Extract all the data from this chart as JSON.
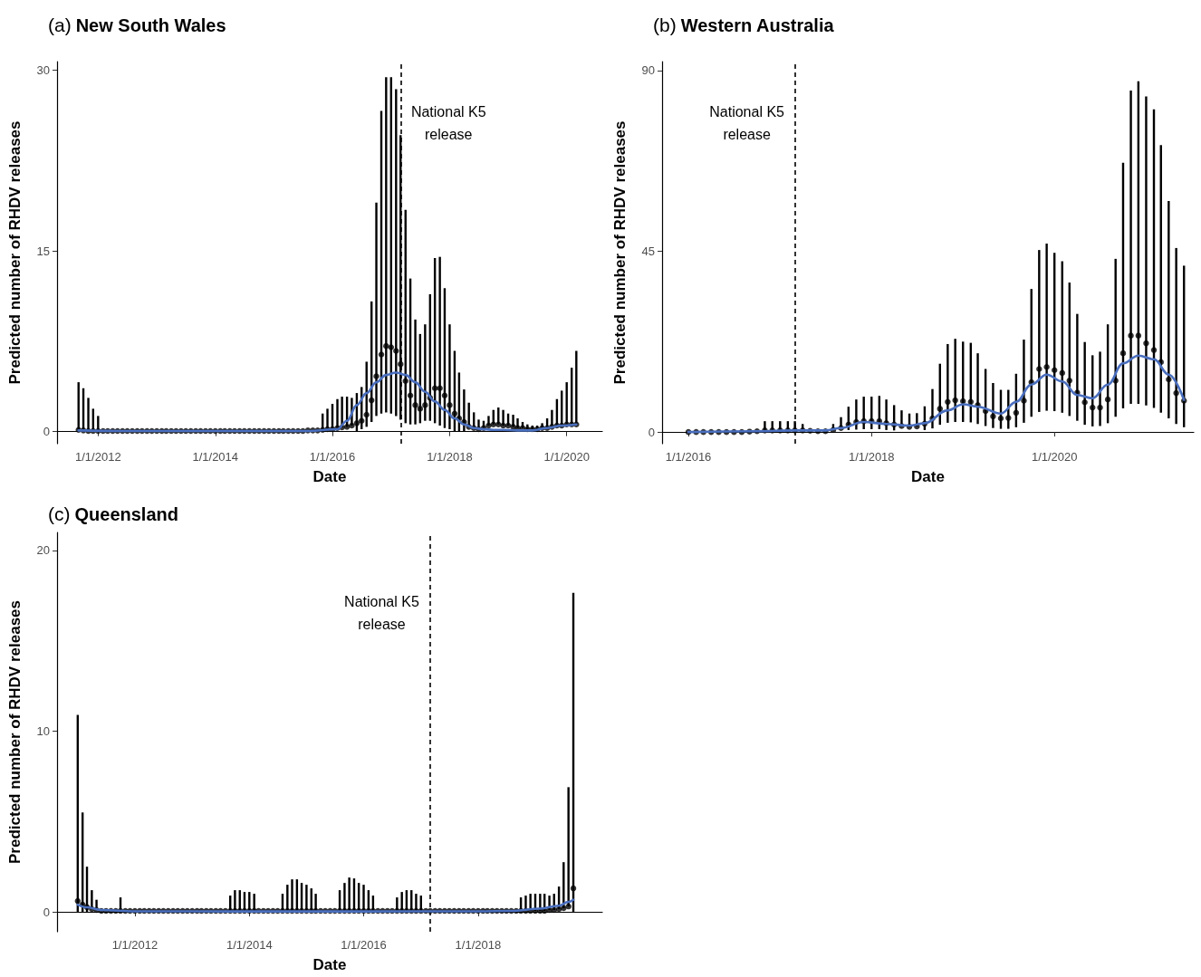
{
  "chart_data": [
    {
      "type": "scatter",
      "title": "(a) New South Wales",
      "xlabel": "Date",
      "ylabel": "Predicted number of RHDV releases",
      "xlim": [
        "2011-04-20",
        "2020-08-10"
      ],
      "ylim": [
        -1,
        30.7
      ],
      "yticks": [
        0,
        15,
        30
      ],
      "xticks": [
        {
          "value": "2012-01-01",
          "label": "1/1/2012"
        },
        {
          "value": "2014-01-01",
          "label": "1/1/2014"
        },
        {
          "value": "2016-01-01",
          "label": "1/1/2016"
        },
        {
          "value": "2018-01-01",
          "label": "1/1/2018"
        },
        {
          "value": "2020-01-01",
          "label": "1/1/2020"
        }
      ],
      "ref_lines": [
        {
          "axis": "x",
          "value": "2017-03-01",
          "color": "#000000",
          "line_style": "dashed"
        }
      ],
      "annotations": [
        "National K5\nrelease"
      ],
      "series": [
        {
          "type": "scatter",
          "color": "#000000",
          "marker": "circle",
          "x": [
            "2011-09",
            "2011-10",
            "2011-11",
            "2011-12",
            "2012-01",
            "2012-02",
            "2012-03",
            "2012-04",
            "2012-05",
            "2012-06",
            "2012-07",
            "2012-08",
            "2012-09",
            "2012-10",
            "2012-11",
            "2012-12",
            "2013-01",
            "2013-02",
            "2013-03",
            "2013-04",
            "2013-05",
            "2013-06",
            "2013-07",
            "2013-08",
            "2013-09",
            "2013-10",
            "2013-11",
            "2013-12",
            "2014-01",
            "2014-02",
            "2014-03",
            "2014-04",
            "2014-05",
            "2014-06",
            "2014-07",
            "2014-08",
            "2014-09",
            "2014-10",
            "2014-11",
            "2014-12",
            "2015-01",
            "2015-02",
            "2015-03",
            "2015-04",
            "2015-05",
            "2015-06",
            "2015-07",
            "2015-08",
            "2015-09",
            "2015-10",
            "2015-11",
            "2015-12",
            "2016-01",
            "2016-02",
            "2016-03",
            "2016-04",
            "2016-05",
            "2016-06",
            "2016-07",
            "2016-08",
            "2016-09",
            "2016-10",
            "2016-11",
            "2016-12",
            "2017-01",
            "2017-02",
            "2017-03",
            "2017-04",
            "2017-05",
            "2017-06",
            "2017-07",
            "2017-08",
            "2017-09",
            "2017-10",
            "2017-11",
            "2017-12",
            "2018-01",
            "2018-02",
            "2018-03",
            "2018-04",
            "2018-05",
            "2018-06",
            "2018-07",
            "2018-08",
            "2018-09",
            "2018-10",
            "2018-11",
            "2018-12",
            "2019-01",
            "2019-02",
            "2019-03",
            "2019-04",
            "2019-05",
            "2019-06",
            "2019-07",
            "2019-08",
            "2019-09",
            "2019-10",
            "2019-11",
            "2019-12",
            "2020-01",
            "2020-02",
            "2020-03"
          ],
          "values": [
            0.15,
            0.1,
            0.05,
            0.05,
            0.05,
            0.05,
            0.05,
            0.05,
            0.05,
            0.05,
            0.05,
            0.05,
            0.05,
            0.05,
            0.05,
            0.05,
            0.05,
            0.05,
            0.05,
            0.05,
            0.05,
            0.05,
            0.05,
            0.05,
            0.05,
            0.05,
            0.05,
            0.05,
            0.05,
            0.05,
            0.05,
            0.05,
            0.05,
            0.05,
            0.05,
            0.05,
            0.05,
            0.05,
            0.05,
            0.05,
            0.05,
            0.05,
            0.05,
            0.05,
            0.05,
            0.05,
            0.05,
            0.1,
            0.1,
            0.1,
            0.15,
            0.2,
            0.2,
            0.3,
            0.35,
            0.4,
            0.5,
            0.7,
            0.9,
            1.4,
            2.6,
            4.6,
            6.4,
            7.1,
            7.0,
            6.7,
            5.6,
            4.2,
            3.0,
            2.2,
            1.9,
            2.2,
            2.8,
            3.6,
            3.6,
            3.0,
            2.2,
            1.5,
            1.1,
            0.8,
            0.4,
            0.3,
            0.2,
            0.3,
            0.5,
            0.6,
            0.6,
            0.5,
            0.5,
            0.4,
            0.3,
            0.3,
            0.2,
            0.2,
            0.2,
            0.3,
            0.3,
            0.4,
            0.5,
            0.5,
            0.6,
            0.6,
            0.6
          ],
          "errors": [
            [
              0.15,
              4.1
            ],
            [
              0.1,
              3.6
            ],
            [
              0.05,
              2.8
            ],
            [
              0.05,
              1.9
            ],
            [
              0.05,
              1.3
            ],
            null,
            null,
            null,
            null,
            null,
            null,
            null,
            null,
            null,
            null,
            null,
            null,
            null,
            null,
            null,
            null,
            null,
            null,
            null,
            null,
            null,
            null,
            null,
            null,
            null,
            null,
            null,
            null,
            null,
            null,
            null,
            null,
            null,
            null,
            null,
            null,
            null,
            null,
            null,
            null,
            null,
            null,
            null,
            null,
            null,
            [
              0.15,
              1.5
            ],
            [
              0.2,
              1.9
            ],
            [
              0.2,
              2.3
            ],
            [
              0.3,
              2.7
            ],
            [
              0.35,
              2.9
            ],
            [
              0.4,
              2.9
            ],
            [
              0.5,
              2.8
            ],
            [
              0,
              3.2
            ],
            [
              0.2,
              3.7
            ],
            [
              0.4,
              5.8
            ],
            [
              0.8,
              10.8
            ],
            [
              1.3,
              19.0
            ],
            [
              1.5,
              26.6
            ],
            [
              1.6,
              29.4
            ],
            [
              1.5,
              29.4
            ],
            [
              1.3,
              28.4
            ],
            [
              1.0,
              24.6
            ],
            [
              0.7,
              18.4
            ],
            [
              0.6,
              12.7
            ],
            [
              0.6,
              9.3
            ],
            [
              0.7,
              8.1
            ],
            [
              0.9,
              8.9
            ],
            [
              0.9,
              11.4
            ],
            [
              0.7,
              14.4
            ],
            [
              0.5,
              14.5
            ],
            [
              0.3,
              11.9
            ],
            [
              0.2,
              8.9
            ],
            [
              0,
              6.7
            ],
            [
              0,
              4.9
            ],
            [
              0,
              3.5
            ],
            [
              0.4,
              2.4
            ],
            [
              0.3,
              1.6
            ],
            [
              0.2,
              1.0
            ],
            [
              0.3,
              0.9
            ],
            [
              0.5,
              1.3
            ],
            [
              0.6,
              1.8
            ],
            [
              0.6,
              2.0
            ],
            [
              0.5,
              1.8
            ],
            [
              0.5,
              1.5
            ],
            [
              0.4,
              1.4
            ],
            [
              0.3,
              1.1
            ],
            [
              0.3,
              0.8
            ],
            [
              0.2,
              0.6
            ],
            [
              0.2,
              0.5
            ],
            [
              0.2,
              0.5
            ],
            [
              0.3,
              0.7
            ],
            [
              0.3,
              1.1
            ],
            [
              0.4,
              1.8
            ],
            [
              0.5,
              2.7
            ],
            [
              0.5,
              3.4
            ],
            [
              0.6,
              4.1
            ],
            [
              0.6,
              5.3
            ],
            [
              0.6,
              6.7
            ]
          ]
        },
        {
          "type": "line",
          "color": "#4a6fbf",
          "marker": "none",
          "x": [
            "2011-09",
            "2012-06",
            "2014-01",
            "2015-06",
            "2015-08",
            "2016-02",
            "2016-04",
            "2016-06",
            "2016-08",
            "2016-10",
            "2016-12",
            "2017-02",
            "2017-04",
            "2017-06",
            "2017-08",
            "2017-10",
            "2017-12",
            "2018-02",
            "2018-04",
            "2018-06",
            "2018-08",
            "2018-10",
            "2018-12",
            "2019-03",
            "2019-06",
            "2019-09",
            "2019-12",
            "2020-03"
          ],
          "values": [
            0.1,
            0.05,
            0.05,
            0.05,
            0.05,
            0.2,
            0.9,
            2.2,
            3.2,
            4.1,
            4.7,
            4.9,
            4.7,
            4.1,
            3.3,
            2.5,
            1.8,
            1.1,
            0.6,
            0.3,
            0.2,
            0.15,
            0.15,
            0.1,
            0.1,
            0.3,
            0.5,
            0.6
          ]
        }
      ]
    },
    {
      "type": "scatter",
      "title": "(b) Western Australia",
      "xlabel": "Date",
      "ylabel": "Predicted number of RHDV releases",
      "xlim": [
        "2015-09-18",
        "2021-07-10"
      ],
      "ylim": [
        -2.9,
        92.2
      ],
      "yticks": [
        0,
        45,
        90
      ],
      "xticks": [
        {
          "value": "2016-01-01",
          "label": "1/1/2016"
        },
        {
          "value": "2018-01-01",
          "label": "1/1/2018"
        },
        {
          "value": "2020-01-01",
          "label": "1/1/2020"
        }
      ],
      "ref_lines": [
        {
          "axis": "x",
          "value": "2017-03-01",
          "color": "#000000",
          "line_style": "dashed"
        }
      ],
      "annotations": [
        "National K5\nrelease"
      ],
      "series": [
        {
          "type": "scatter",
          "color": "#000000",
          "marker": "circle",
          "x": [
            "2016-01",
            "2016-02",
            "2016-03",
            "2016-04",
            "2016-05",
            "2016-06",
            "2016-07",
            "2016-08",
            "2016-09",
            "2016-10",
            "2016-11",
            "2016-12",
            "2017-01",
            "2017-02",
            "2017-03",
            "2017-04",
            "2017-05",
            "2017-06",
            "2017-07",
            "2017-08",
            "2017-09",
            "2017-10",
            "2017-11",
            "2017-12",
            "2018-01",
            "2018-02",
            "2018-03",
            "2018-04",
            "2018-05",
            "2018-06",
            "2018-07",
            "2018-08",
            "2018-09",
            "2018-10",
            "2018-11",
            "2018-12",
            "2019-01",
            "2019-02",
            "2019-03",
            "2019-04",
            "2019-05",
            "2019-06",
            "2019-07",
            "2019-08",
            "2019-09",
            "2019-10",
            "2019-11",
            "2019-12",
            "2020-01",
            "2020-02",
            "2020-03",
            "2020-04",
            "2020-05",
            "2020-06",
            "2020-07",
            "2020-08",
            "2020-09",
            "2020-10",
            "2020-11",
            "2020-12",
            "2021-01",
            "2021-02",
            "2021-03",
            "2021-04",
            "2021-05",
            "2021-06"
          ],
          "values": [
            0,
            0,
            0,
            0,
            0,
            0,
            0,
            0,
            0.1,
            0.2,
            0.4,
            0.4,
            0.4,
            0.4,
            0.4,
            0.4,
            0.3,
            0.2,
            0.2,
            0.5,
            1.0,
            1.9,
            2.5,
            2.7,
            2.7,
            2.7,
            2.2,
            1.9,
            1.5,
            1.3,
            1.4,
            2.1,
            3.4,
            5.8,
            7.5,
            7.9,
            7.7,
            7.5,
            6.7,
            5.2,
            3.9,
            3.4,
            3.5,
            4.8,
            7.8,
            12.4,
            15.7,
            16.2,
            15.4,
            14.7,
            12.8,
            9.8,
            7.4,
            6.1,
            6.1,
            8.1,
            12.8,
            19.6,
            24.0,
            24.0,
            22.1,
            20.4,
            17.4,
            13.1,
            9.7,
            7.8
          ],
          "errors": [
            null,
            null,
            null,
            null,
            null,
            null,
            null,
            null,
            null,
            null,
            [
              0.4,
              2.7
            ],
            [
              0.4,
              2.7
            ],
            [
              0.4,
              2.7
            ],
            [
              0.4,
              2.7
            ],
            [
              0.4,
              2.7
            ],
            [
              0.4,
              2.0
            ],
            null,
            null,
            null,
            [
              0.5,
              2.0
            ],
            [
              1.0,
              3.7
            ],
            [
              0.5,
              6.3
            ],
            [
              0.6,
              8.1
            ],
            [
              0.7,
              8.8
            ],
            [
              0.7,
              8.8
            ],
            [
              0.7,
              9.0
            ],
            [
              0.5,
              8.1
            ],
            [
              0.4,
              6.7
            ],
            [
              1.5,
              5.4
            ],
            [
              1.3,
              4.6
            ],
            [
              1.4,
              4.7
            ],
            [
              0.5,
              6.4
            ],
            [
              0.9,
              10.7
            ],
            [
              1.8,
              17.0
            ],
            [
              2.3,
              21.9
            ],
            [
              2.5,
              23.2
            ],
            [
              2.5,
              22.5
            ],
            [
              2.4,
              22.2
            ],
            [
              2.0,
              19.6
            ],
            [
              1.5,
              15.7
            ],
            [
              1.0,
              12.2
            ],
            [
              0.8,
              10.5
            ],
            [
              0.8,
              10.5
            ],
            [
              1.2,
              14.5
            ],
            [
              2.3,
              23.0
            ],
            [
              3.8,
              35.6
            ],
            [
              5.0,
              45.3
            ],
            [
              5.3,
              46.9
            ],
            [
              5.2,
              44.6
            ],
            [
              4.8,
              42.5
            ],
            [
              4.0,
              37.2
            ],
            [
              2.8,
              29.4
            ],
            [
              1.8,
              22.4
            ],
            [
              1.4,
              19.1
            ],
            [
              1.5,
              20.0
            ],
            [
              2.2,
              26.8
            ],
            [
              3.8,
              43.1
            ],
            [
              5.9,
              67.0
            ],
            [
              7.0,
              85.0
            ],
            [
              7.0,
              87.3
            ],
            [
              6.6,
              83.5
            ],
            [
              6.0,
              80.3
            ],
            [
              4.8,
              71.4
            ],
            [
              3.4,
              57.5
            ],
            [
              2.0,
              45.8
            ],
            [
              1.2,
              41.4
            ]
          ]
        },
        {
          "type": "line",
          "color": "#4a6fbf",
          "marker": "none",
          "x": [
            "2016-01",
            "2016-10",
            "2017-03",
            "2017-07",
            "2017-09",
            "2017-12",
            "2018-03",
            "2018-06",
            "2018-08",
            "2018-11",
            "2019-01",
            "2019-03",
            "2019-06",
            "2019-08",
            "2019-10",
            "2019-12",
            "2020-02",
            "2020-04",
            "2020-06",
            "2020-08",
            "2020-10",
            "2020-12",
            "2021-02",
            "2021-04",
            "2021-06"
          ],
          "values": [
            0,
            0.2,
            0.4,
            0.4,
            1.0,
            2.5,
            2.0,
            1.6,
            2.2,
            5.4,
            6.9,
            6.3,
            4.6,
            7.5,
            11.8,
            14.3,
            12.6,
            9.2,
            8.4,
            11.8,
            17.1,
            19.0,
            18.1,
            14.3,
            8.0
          ]
        }
      ]
    },
    {
      "type": "scatter",
      "title": "(c) Queensland",
      "xlabel": "Date",
      "ylabel": "Predicted number of RHDV releases",
      "xlim": [
        "2010-08-22",
        "2020-03-04"
      ],
      "ylim": [
        -1.1,
        21
      ],
      "yticks": [
        0,
        10,
        20
      ],
      "xticks": [
        {
          "value": "2012-01-01",
          "label": "1/1/2012"
        },
        {
          "value": "2014-01-01",
          "label": "1/1/2014"
        },
        {
          "value": "2016-01-01",
          "label": "1/1/2016"
        },
        {
          "value": "2018-01-01",
          "label": "1/1/2018"
        }
      ],
      "ref_lines": [
        {
          "axis": "x",
          "value": "2017-02-26",
          "color": "#000000",
          "line_style": "dashed"
        }
      ],
      "annotations": [
        "National K5\nrelease"
      ],
      "series": [
        {
          "type": "scatter",
          "color": "#000000",
          "marker": "circle",
          "x": [
            "2011-01",
            "2011-02",
            "2011-03",
            "2011-04",
            "2011-05",
            "2011-06",
            "2011-07",
            "2011-08",
            "2011-09",
            "2011-10",
            "2011-11",
            "2011-12",
            "2012-01",
            "2012-02",
            "2012-03",
            "2012-04",
            "2012-05",
            "2012-06",
            "2012-07",
            "2012-08",
            "2012-09",
            "2012-10",
            "2012-11",
            "2012-12",
            "2013-01",
            "2013-02",
            "2013-03",
            "2013-04",
            "2013-05",
            "2013-06",
            "2013-07",
            "2013-08",
            "2013-09",
            "2013-10",
            "2013-11",
            "2013-12",
            "2014-01",
            "2014-02",
            "2014-03",
            "2014-04",
            "2014-05",
            "2014-06",
            "2014-07",
            "2014-08",
            "2014-09",
            "2014-10",
            "2014-11",
            "2014-12",
            "2015-01",
            "2015-02",
            "2015-03",
            "2015-04",
            "2015-05",
            "2015-06",
            "2015-07",
            "2015-08",
            "2015-09",
            "2015-10",
            "2015-11",
            "2015-12",
            "2016-01",
            "2016-02",
            "2016-03",
            "2016-04",
            "2016-05",
            "2016-06",
            "2016-07",
            "2016-08",
            "2016-09",
            "2016-10",
            "2016-11",
            "2016-12",
            "2017-01",
            "2017-02",
            "2017-03",
            "2017-04",
            "2017-05",
            "2017-06",
            "2017-07",
            "2017-08",
            "2017-09",
            "2017-10",
            "2017-11",
            "2017-12",
            "2018-01",
            "2018-02",
            "2018-03",
            "2018-04",
            "2018-05",
            "2018-06",
            "2018-07",
            "2018-08",
            "2018-09",
            "2018-10",
            "2018-11",
            "2018-12",
            "2019-01",
            "2019-02",
            "2019-03",
            "2019-04",
            "2019-05",
            "2019-06",
            "2019-07",
            "2019-08",
            "2019-09"
          ],
          "values": [
            0.6,
            0.4,
            0.26,
            0.15,
            0.1,
            0.05,
            0.05,
            0.05,
            0.05,
            0.05,
            0.05,
            0.05,
            0.05,
            0.05,
            0.05,
            0.05,
            0.05,
            0.05,
            0.05,
            0.05,
            0.05,
            0.05,
            0.05,
            0.05,
            0.05,
            0.05,
            0.05,
            0.05,
            0.05,
            0.05,
            0.05,
            0.05,
            0.05,
            0.05,
            0.05,
            0.05,
            0.05,
            0.05,
            0.05,
            0.05,
            0.05,
            0.05,
            0.05,
            0.05,
            0.05,
            0.05,
            0.05,
            0.05,
            0.05,
            0.05,
            0.05,
            0.05,
            0.05,
            0.05,
            0.05,
            0.05,
            0.05,
            0.05,
            0.05,
            0.05,
            0.05,
            0.05,
            0.05,
            0.05,
            0.05,
            0.05,
            0.05,
            0.05,
            0.05,
            0.05,
            0.05,
            0.05,
            0.05,
            0.05,
            0.05,
            0.05,
            0.05,
            0.05,
            0.05,
            0.05,
            0.05,
            0.05,
            0.05,
            0.05,
            0.05,
            0.05,
            0.05,
            0.05,
            0.05,
            0.05,
            0.05,
            0.05,
            0.05,
            0.05,
            0.05,
            0.05,
            0.05,
            0.05,
            0.05,
            0.1,
            0.1,
            0.15,
            0.2,
            0.3,
            1.3
          ],
          "errors": [
            [
              0,
              10.9
            ],
            [
              0,
              5.5
            ],
            [
              0,
              2.5
            ],
            [
              0.15,
              1.2
            ],
            [
              0.1,
              0.67
            ],
            null,
            null,
            null,
            null,
            [
              0.05,
              0.8
            ],
            null,
            null,
            null,
            null,
            null,
            null,
            null,
            null,
            null,
            null,
            null,
            null,
            null,
            null,
            null,
            null,
            null,
            null,
            null,
            null,
            null,
            null,
            [
              0.05,
              0.9
            ],
            [
              0.05,
              1.2
            ],
            [
              0.05,
              1.2
            ],
            [
              0.05,
              1.1
            ],
            [
              0.05,
              1.1
            ],
            [
              0.05,
              1.0
            ],
            null,
            null,
            null,
            null,
            null,
            [
              0.05,
              1.0
            ],
            [
              0.05,
              1.5
            ],
            [
              0.05,
              1.8
            ],
            [
              0.05,
              1.8
            ],
            [
              0.05,
              1.6
            ],
            [
              0.05,
              1.5
            ],
            [
              0.05,
              1.3
            ],
            [
              0.05,
              1.0
            ],
            null,
            null,
            null,
            null,
            [
              0.05,
              1.2
            ],
            [
              0.05,
              1.6
            ],
            [
              0.05,
              1.9
            ],
            [
              0.05,
              1.85
            ],
            [
              0.05,
              1.6
            ],
            [
              0.05,
              1.5
            ],
            [
              0.05,
              1.2
            ],
            [
              0.05,
              0.9
            ],
            null,
            null,
            null,
            null,
            [
              0.05,
              0.8
            ],
            [
              0.05,
              1.1
            ],
            [
              0.05,
              1.2
            ],
            [
              0.05,
              1.2
            ],
            [
              0.05,
              1.0
            ],
            [
              0.05,
              0.9
            ],
            null,
            null,
            null,
            null,
            null,
            null,
            null,
            null,
            null,
            null,
            null,
            null,
            null,
            null,
            null,
            null,
            null,
            null,
            null,
            null,
            [
              0.05,
              0.8
            ],
            [
              0.05,
              0.9
            ],
            [
              0.05,
              1.0
            ],
            [
              0.05,
              1.0
            ],
            [
              0.05,
              1.0
            ],
            [
              0.05,
              1.0
            ],
            [
              0.1,
              0.9
            ],
            [
              0.1,
              1.0
            ],
            [
              0.15,
              1.4
            ],
            [
              0.2,
              2.75
            ],
            [
              0.3,
              6.9
            ],
            [
              0,
              17.65
            ]
          ]
        },
        {
          "type": "line",
          "color": "#4a6fbf",
          "marker": "none",
          "x": [
            "2011-01",
            "2011-03",
            "2011-06",
            "2012-01",
            "2014-01",
            "2016-01",
            "2018-01",
            "2018-08",
            "2019-02",
            "2019-06",
            "2019-08",
            "2019-09"
          ],
          "values": [
            0.4,
            0.25,
            0.1,
            0.03,
            0.02,
            0.02,
            0.03,
            0.05,
            0.18,
            0.34,
            0.55,
            0.67
          ]
        }
      ]
    }
  ]
}
